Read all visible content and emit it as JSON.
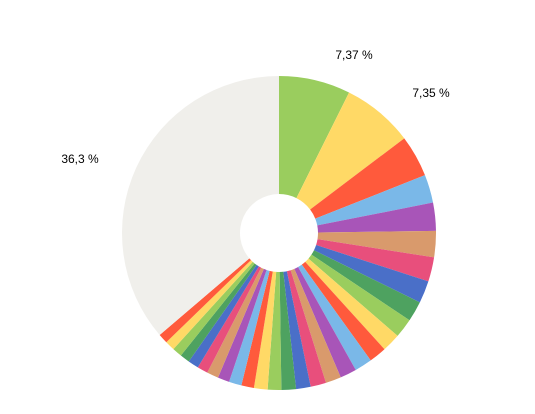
{
  "chart_data": {
    "type": "pie",
    "title": "",
    "legend": "none",
    "donut": true,
    "start_angle_deg": 0,
    "direction": "clockwise",
    "slices": [
      {
        "value": 7.37,
        "color": "#9acd5e",
        "label": "7,37 %"
      },
      {
        "value": 7.35,
        "color": "#ffd966",
        "label": "7,35 %"
      },
      {
        "value": 4.3,
        "color": "#ff5a3c",
        "label": ""
      },
      {
        "value": 2.9,
        "color": "#7ab8e8",
        "label": ""
      },
      {
        "value": 2.9,
        "color": "#a855b8",
        "label": ""
      },
      {
        "value": 2.7,
        "color": "#d99a6c",
        "label": ""
      },
      {
        "value": 2.5,
        "color": "#e84f7c",
        "label": ""
      },
      {
        "value": 2.3,
        "color": "#4a6fc8",
        "label": ""
      },
      {
        "value": 2.1,
        "color": "#4ea260",
        "label": ""
      },
      {
        "value": 2.0,
        "color": "#9acd5e",
        "label": ""
      },
      {
        "value": 1.9,
        "color": "#ffd966",
        "label": ""
      },
      {
        "value": 1.8,
        "color": "#ff5a3c",
        "label": ""
      },
      {
        "value": 1.8,
        "color": "#7ab8e8",
        "label": ""
      },
      {
        "value": 1.7,
        "color": "#a855b8",
        "label": ""
      },
      {
        "value": 1.6,
        "color": "#d99a6c",
        "label": ""
      },
      {
        "value": 1.6,
        "color": "#e84f7c",
        "label": ""
      },
      {
        "value": 1.5,
        "color": "#4a6fc8",
        "label": ""
      },
      {
        "value": 1.5,
        "color": "#4ea260",
        "label": ""
      },
      {
        "value": 1.4,
        "color": "#9acd5e",
        "label": ""
      },
      {
        "value": 1.4,
        "color": "#ffd966",
        "label": ""
      },
      {
        "value": 1.3,
        "color": "#ff5a3c",
        "label": ""
      },
      {
        "value": 1.3,
        "color": "#7ab8e8",
        "label": ""
      },
      {
        "value": 1.2,
        "color": "#a855b8",
        "label": ""
      },
      {
        "value": 1.2,
        "color": "#d99a6c",
        "label": ""
      },
      {
        "value": 1.1,
        "color": "#e84f7c",
        "label": ""
      },
      {
        "value": 1.1,
        "color": "#4a6fc8",
        "label": ""
      },
      {
        "value": 1.0,
        "color": "#4ea260",
        "label": ""
      },
      {
        "value": 1.0,
        "color": "#9acd5e",
        "label": ""
      },
      {
        "value": 1.0,
        "color": "#ffd966",
        "label": ""
      },
      {
        "value": 1.0,
        "color": "#ff5a3c",
        "label": ""
      },
      {
        "value": 36.3,
        "color": "#f0efeb",
        "label": "36,3 %"
      }
    ]
  }
}
